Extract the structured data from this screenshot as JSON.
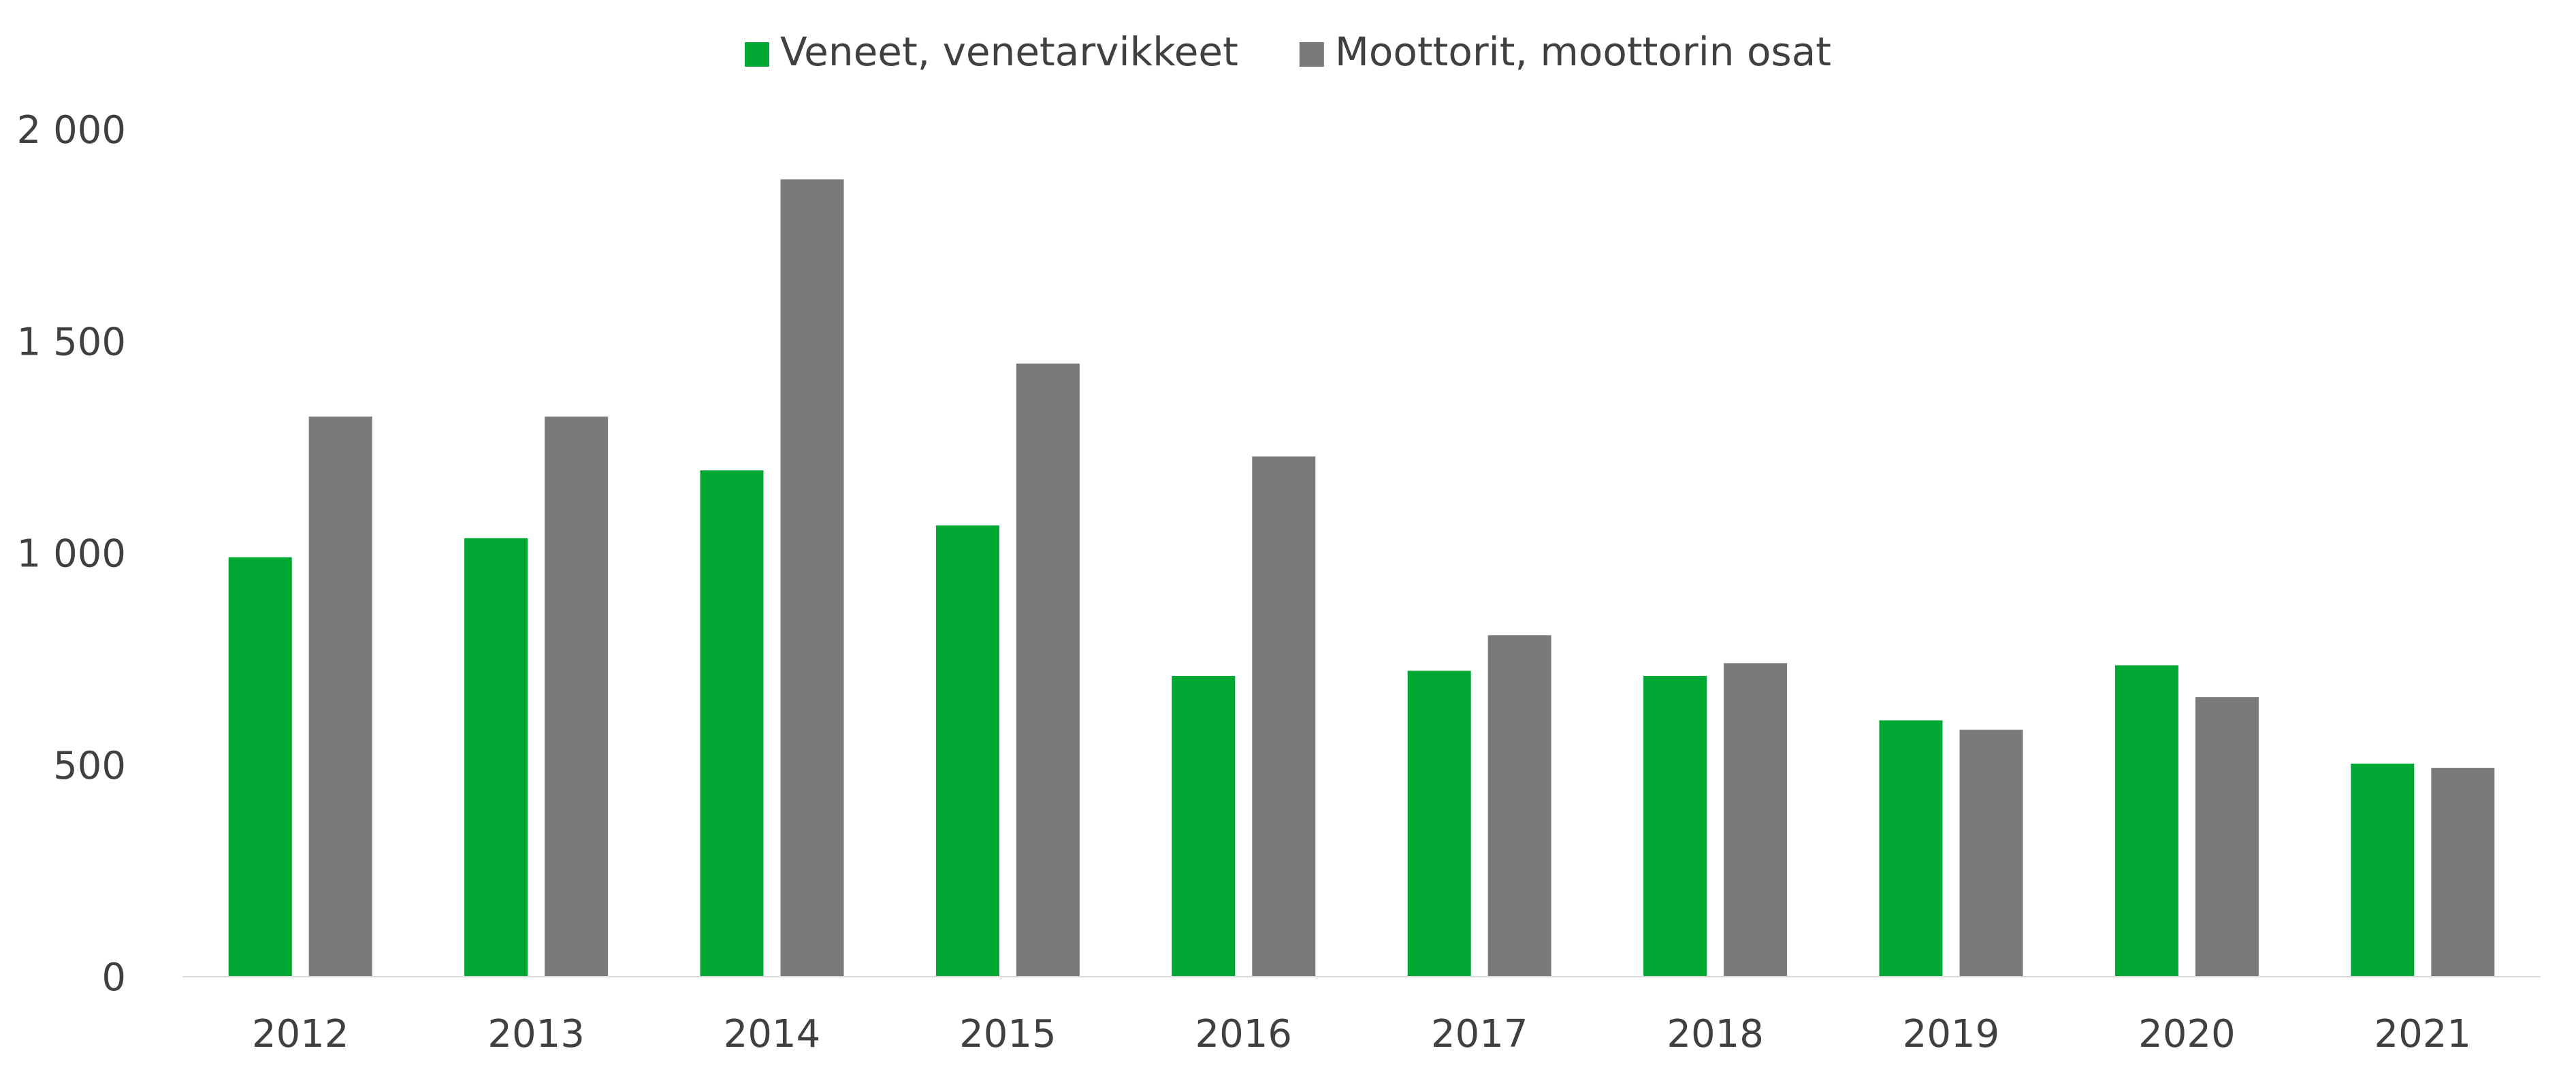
{
  "chart_data": {
    "type": "bar",
    "categories": [
      "2012",
      "2013",
      "2014",
      "2015",
      "2016",
      "2017",
      "2018",
      "2019",
      "2020",
      "2021"
    ],
    "series": [
      {
        "name": "Veneet, venetarvikkeet",
        "color": "#00A833",
        "values": [
          990,
          1035,
          1195,
          1065,
          710,
          722,
          710,
          605,
          735,
          503
        ]
      },
      {
        "name": "Moottorit, moottorin osat",
        "color": "#7A7A7A",
        "values": [
          1322,
          1322,
          1882,
          1447,
          1228,
          806,
          740,
          583,
          660,
          493
        ]
      }
    ],
    "ylim": [
      0,
      2000
    ],
    "yticks": [
      0,
      500,
      1000,
      1500,
      2000
    ],
    "ytick_labels": [
      "0",
      "500",
      "1 000",
      "1 500",
      "2 000"
    ],
    "legend_position": "top-center",
    "grid": false
  }
}
